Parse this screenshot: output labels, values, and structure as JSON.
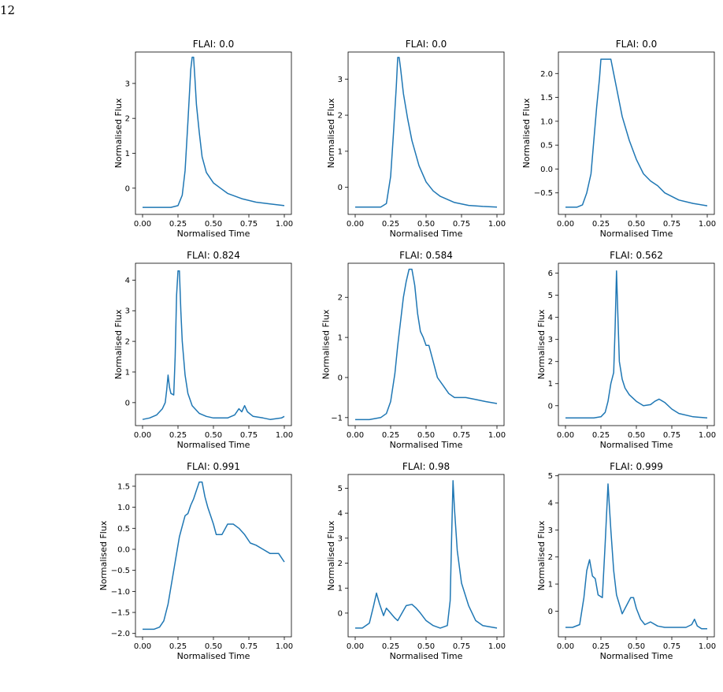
{
  "page_number": "12",
  "chart_data": [
    {
      "type": "line",
      "title": "FLAI: 0.0",
      "xlabel": "Normalised Time",
      "ylabel": "Normalised Flux",
      "xlim": [
        -0.05,
        1.05
      ],
      "ylim": [
        -0.75,
        3.9
      ],
      "xticks": [
        0,
        0.25,
        0.5,
        0.75,
        1.0
      ],
      "xtick_labels": [
        "0.00",
        "0.25",
        "0.50",
        "0.75",
        "1.00"
      ],
      "yticks": [
        0,
        1,
        2,
        3
      ],
      "ytick_labels": [
        "0",
        "1",
        "2",
        "3"
      ],
      "color": "#1f77b4",
      "series": [
        {
          "x": [
            0,
            0.1,
            0.2,
            0.25,
            0.28,
            0.3,
            0.32,
            0.34,
            0.35,
            0.36,
            0.37,
            0.38,
            0.4,
            0.42,
            0.45,
            0.5,
            0.55,
            0.6,
            0.7,
            0.8,
            0.9,
            1.0
          ],
          "y": [
            -0.55,
            -0.55,
            -0.55,
            -0.5,
            -0.2,
            0.5,
            1.9,
            3.4,
            3.75,
            3.75,
            3.1,
            2.4,
            1.6,
            0.9,
            0.45,
            0.15,
            0.0,
            -0.15,
            -0.3,
            -0.4,
            -0.45,
            -0.5
          ]
        }
      ]
    },
    {
      "type": "line",
      "title": "FLAI: 0.0",
      "xlabel": "Normalised Time",
      "ylabel": "Normalised Flux",
      "xlim": [
        -0.05,
        1.05
      ],
      "ylim": [
        -0.75,
        3.75
      ],
      "xticks": [
        0,
        0.25,
        0.5,
        0.75,
        1.0
      ],
      "xtick_labels": [
        "0.00",
        "0.25",
        "0.50",
        "0.75",
        "1.00"
      ],
      "yticks": [
        0,
        1,
        2,
        3
      ],
      "ytick_labels": [
        "0",
        "1",
        "2",
        "3"
      ],
      "color": "#1f77b4",
      "series": [
        {
          "x": [
            0,
            0.1,
            0.18,
            0.22,
            0.25,
            0.27,
            0.29,
            0.3,
            0.31,
            0.32,
            0.34,
            0.37,
            0.4,
            0.45,
            0.5,
            0.55,
            0.6,
            0.7,
            0.8,
            0.9,
            1.0
          ],
          "y": [
            -0.55,
            -0.55,
            -0.55,
            -0.45,
            0.3,
            1.5,
            2.8,
            3.6,
            3.6,
            3.3,
            2.6,
            1.9,
            1.3,
            0.6,
            0.15,
            -0.1,
            -0.25,
            -0.42,
            -0.5,
            -0.53,
            -0.55
          ]
        }
      ]
    },
    {
      "type": "line",
      "title": "FLAI: 0.0",
      "xlabel": "Normalised Time",
      "ylabel": "Normalised Flux",
      "xlim": [
        -0.05,
        1.05
      ],
      "ylim": [
        -0.95,
        2.45
      ],
      "xticks": [
        0,
        0.25,
        0.5,
        0.75,
        1.0
      ],
      "xtick_labels": [
        "0.00",
        "0.25",
        "0.50",
        "0.75",
        "1.00"
      ],
      "yticks": [
        -0.5,
        0,
        0.5,
        1.0,
        1.5,
        2.0
      ],
      "ytick_labels": [
        "−0.5",
        "0.0",
        "0.5",
        "1.0",
        "1.5",
        "2.0"
      ],
      "color": "#1f77b4",
      "series": [
        {
          "x": [
            0,
            0.08,
            0.12,
            0.15,
            0.18,
            0.2,
            0.22,
            0.24,
            0.25,
            0.26,
            0.28,
            0.3,
            0.32,
            0.34,
            0.36,
            0.38,
            0.4,
            0.45,
            0.5,
            0.55,
            0.6,
            0.65,
            0.7,
            0.8,
            0.9,
            1.0
          ],
          "y": [
            -0.8,
            -0.8,
            -0.75,
            -0.5,
            -0.1,
            0.6,
            1.3,
            1.9,
            2.3,
            2.3,
            2.3,
            2.3,
            2.3,
            2.0,
            1.7,
            1.4,
            1.1,
            0.6,
            0.2,
            -0.1,
            -0.25,
            -0.35,
            -0.5,
            -0.65,
            -0.72,
            -0.77
          ]
        }
      ]
    },
    {
      "type": "line",
      "title": "FLAI: 0.824",
      "xlabel": "Normalised Time",
      "ylabel": "Normalised Flux",
      "xlim": [
        -0.05,
        1.05
      ],
      "ylim": [
        -0.75,
        4.55
      ],
      "xticks": [
        0,
        0.25,
        0.5,
        0.75,
        1.0
      ],
      "xtick_labels": [
        "0.00",
        "0.25",
        "0.50",
        "0.75",
        "1.00"
      ],
      "yticks": [
        0,
        1,
        2,
        3,
        4
      ],
      "ytick_labels": [
        "0",
        "1",
        "2",
        "3",
        "4"
      ],
      "color": "#1f77b4",
      "series": [
        {
          "x": [
            0,
            0.05,
            0.1,
            0.14,
            0.16,
            0.17,
            0.18,
            0.19,
            0.2,
            0.22,
            0.23,
            0.24,
            0.25,
            0.26,
            0.27,
            0.28,
            0.3,
            0.32,
            0.35,
            0.4,
            0.45,
            0.5,
            0.6,
            0.65,
            0.68,
            0.7,
            0.72,
            0.74,
            0.78,
            0.85,
            0.9,
            0.98,
            1.0
          ],
          "y": [
            -0.55,
            -0.5,
            -0.4,
            -0.2,
            0.0,
            0.4,
            0.9,
            0.5,
            0.3,
            0.25,
            1.5,
            3.5,
            4.3,
            4.3,
            3.0,
            2.0,
            0.9,
            0.3,
            -0.1,
            -0.35,
            -0.45,
            -0.5,
            -0.5,
            -0.4,
            -0.2,
            -0.3,
            -0.1,
            -0.3,
            -0.45,
            -0.5,
            -0.55,
            -0.5,
            -0.45
          ]
        }
      ]
    },
    {
      "type": "line",
      "title": "FLAI: 0.584",
      "xlabel": "Normalised Time",
      "ylabel": "Normalised Flux",
      "xlim": [
        -0.05,
        1.05
      ],
      "ylim": [
        -1.2,
        2.85
      ],
      "xticks": [
        0,
        0.25,
        0.5,
        0.75,
        1.0
      ],
      "xtick_labels": [
        "0.00",
        "0.25",
        "0.50",
        "0.75",
        "1.00"
      ],
      "yticks": [
        -1,
        0,
        1,
        2
      ],
      "ytick_labels": [
        "−1",
        "0",
        "1",
        "2"
      ],
      "color": "#1f77b4",
      "series": [
        {
          "x": [
            0,
            0.1,
            0.18,
            0.22,
            0.25,
            0.28,
            0.3,
            0.32,
            0.34,
            0.36,
            0.38,
            0.4,
            0.42,
            0.44,
            0.46,
            0.48,
            0.5,
            0.52,
            0.55,
            0.58,
            0.62,
            0.66,
            0.7,
            0.78,
            0.85,
            0.92,
            1.0
          ],
          "y": [
            -1.05,
            -1.05,
            -1.0,
            -0.9,
            -0.6,
            0.1,
            0.8,
            1.4,
            2.0,
            2.4,
            2.7,
            2.7,
            2.3,
            1.6,
            1.15,
            1.0,
            0.8,
            0.8,
            0.4,
            0.0,
            -0.2,
            -0.4,
            -0.5,
            -0.5,
            -0.55,
            -0.6,
            -0.65
          ]
        }
      ]
    },
    {
      "type": "line",
      "title": "FLAI: 0.562",
      "xlabel": "Normalised Time",
      "ylabel": "Normalised Flux",
      "xlim": [
        -0.05,
        1.05
      ],
      "ylim": [
        -0.9,
        6.45
      ],
      "xticks": [
        0,
        0.25,
        0.5,
        0.75,
        1.0
      ],
      "xtick_labels": [
        "0.00",
        "0.25",
        "0.50",
        "0.75",
        "1.00"
      ],
      "yticks": [
        0,
        1,
        2,
        3,
        4,
        5,
        6
      ],
      "ytick_labels": [
        "0",
        "1",
        "2",
        "3",
        "4",
        "5",
        "6"
      ],
      "color": "#1f77b4",
      "series": [
        {
          "x": [
            0,
            0.1,
            0.2,
            0.25,
            0.28,
            0.3,
            0.32,
            0.34,
            0.35,
            0.36,
            0.37,
            0.38,
            0.4,
            0.42,
            0.45,
            0.5,
            0.55,
            0.6,
            0.63,
            0.66,
            0.7,
            0.75,
            0.8,
            0.9,
            1.0
          ],
          "y": [
            -0.55,
            -0.55,
            -0.55,
            -0.5,
            -0.3,
            0.2,
            1.0,
            1.5,
            3.5,
            6.1,
            4.0,
            2.0,
            1.2,
            0.8,
            0.5,
            0.2,
            0.0,
            0.05,
            0.2,
            0.3,
            0.15,
            -0.15,
            -0.35,
            -0.5,
            -0.55
          ]
        }
      ]
    },
    {
      "type": "line",
      "title": "FLAI: 0.991",
      "xlabel": "Normalised Time",
      "ylabel": "Normalised Flux",
      "xlim": [
        -0.05,
        1.05
      ],
      "ylim": [
        -2.08,
        1.78
      ],
      "xticks": [
        0,
        0.25,
        0.5,
        0.75,
        1.0
      ],
      "xtick_labels": [
        "0.00",
        "0.25",
        "0.50",
        "0.75",
        "1.00"
      ],
      "yticks": [
        -2.0,
        -1.5,
        -1.0,
        -0.5,
        0,
        0.5,
        1.0,
        1.5
      ],
      "ytick_labels": [
        "−2.0",
        "−1.5",
        "−1.0",
        "−0.5",
        "0.0",
        "0.5",
        "1.0",
        "1.5"
      ],
      "color": "#1f77b4",
      "series": [
        {
          "x": [
            0,
            0.08,
            0.12,
            0.15,
            0.18,
            0.2,
            0.22,
            0.24,
            0.26,
            0.28,
            0.3,
            0.32,
            0.34,
            0.36,
            0.38,
            0.4,
            0.42,
            0.44,
            0.46,
            0.48,
            0.5,
            0.52,
            0.56,
            0.6,
            0.64,
            0.68,
            0.72,
            0.76,
            0.8,
            0.85,
            0.9,
            0.96,
            1.0
          ],
          "y": [
            -1.9,
            -1.9,
            -1.85,
            -1.7,
            -1.3,
            -0.9,
            -0.5,
            -0.1,
            0.3,
            0.55,
            0.8,
            0.85,
            1.05,
            1.2,
            1.4,
            1.6,
            1.6,
            1.25,
            1.0,
            0.8,
            0.6,
            0.35,
            0.35,
            0.6,
            0.6,
            0.5,
            0.35,
            0.15,
            0.1,
            0.0,
            -0.1,
            -0.1,
            -0.3
          ]
        }
      ]
    },
    {
      "type": "line",
      "title": "FLAI: 0.98",
      "xlabel": "Normalised Time",
      "ylabel": "Normalised Flux",
      "xlim": [
        -0.05,
        1.05
      ],
      "ylim": [
        -0.95,
        5.55
      ],
      "xticks": [
        0,
        0.25,
        0.5,
        0.75,
        1.0
      ],
      "xtick_labels": [
        "0.00",
        "0.25",
        "0.50",
        "0.75",
        "1.00"
      ],
      "yticks": [
        0,
        1,
        2,
        3,
        4,
        5
      ],
      "ytick_labels": [
        "0",
        "1",
        "2",
        "3",
        "4",
        "5"
      ],
      "color": "#1f77b4",
      "series": [
        {
          "x": [
            0,
            0.05,
            0.1,
            0.13,
            0.15,
            0.17,
            0.2,
            0.22,
            0.25,
            0.28,
            0.3,
            0.33,
            0.36,
            0.4,
            0.43,
            0.46,
            0.5,
            0.55,
            0.6,
            0.65,
            0.67,
            0.68,
            0.69,
            0.7,
            0.72,
            0.75,
            0.8,
            0.85,
            0.9,
            1.0
          ],
          "y": [
            -0.6,
            -0.6,
            -0.4,
            0.3,
            0.8,
            0.4,
            -0.1,
            0.2,
            0.0,
            -0.2,
            -0.3,
            0.0,
            0.3,
            0.35,
            0.2,
            0.0,
            -0.3,
            -0.5,
            -0.6,
            -0.5,
            0.5,
            3.0,
            5.3,
            4.2,
            2.5,
            1.2,
            0.3,
            -0.3,
            -0.5,
            -0.6
          ]
        }
      ]
    },
    {
      "type": "line",
      "title": "FLAI: 0.999",
      "xlabel": "Normalised Time",
      "ylabel": "Normalised Flux",
      "xlim": [
        -0.05,
        1.05
      ],
      "ylim": [
        -0.95,
        5.05
      ],
      "xticks": [
        0,
        0.25,
        0.5,
        0.75,
        1.0
      ],
      "xtick_labels": [
        "0.00",
        "0.25",
        "0.50",
        "0.75",
        "1.00"
      ],
      "yticks": [
        0,
        1,
        2,
        3,
        4,
        5
      ],
      "ytick_labels": [
        "0",
        "1",
        "2",
        "3",
        "4",
        "5"
      ],
      "color": "#1f77b4",
      "series": [
        {
          "x": [
            0,
            0.05,
            0.1,
            0.13,
            0.15,
            0.17,
            0.19,
            0.21,
            0.23,
            0.26,
            0.28,
            0.3,
            0.32,
            0.34,
            0.36,
            0.4,
            0.43,
            0.46,
            0.48,
            0.5,
            0.53,
            0.56,
            0.6,
            0.65,
            0.7,
            0.8,
            0.85,
            0.89,
            0.91,
            0.93,
            0.96,
            1.0
          ],
          "y": [
            -0.6,
            -0.6,
            -0.5,
            0.5,
            1.5,
            1.9,
            1.3,
            1.2,
            0.6,
            0.5,
            2.5,
            4.7,
            3.0,
            1.5,
            0.6,
            -0.1,
            0.2,
            0.5,
            0.5,
            0.1,
            -0.3,
            -0.5,
            -0.4,
            -0.55,
            -0.6,
            -0.6,
            -0.6,
            -0.5,
            -0.3,
            -0.55,
            -0.65,
            -0.65
          ]
        }
      ]
    }
  ]
}
